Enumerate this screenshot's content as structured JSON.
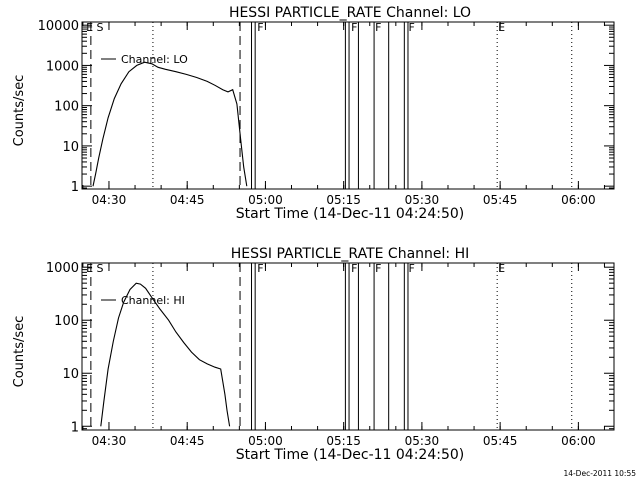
{
  "chart_data": [
    {
      "type": "line",
      "title": "HESSI PARTICLE_RATE Channel: LO",
      "xlabel": "Start Time (14-Dec-11 04:24:50)",
      "ylabel": "Counts/sec",
      "y_scale": "log",
      "xlim_minutes_after_start": [
        0,
        102
      ],
      "ylim": [
        0.85,
        12000
      ],
      "x_ticks": [
        {
          "label": "04:30",
          "value": 5.17
        },
        {
          "label": "04:45",
          "value": 20.17
        },
        {
          "label": "05:00",
          "value": 35.17
        },
        {
          "label": "05:15",
          "value": 50.17
        },
        {
          "label": "05:30",
          "value": 65.17
        },
        {
          "label": "05:45",
          "value": 80.17
        },
        {
          "label": "06:00",
          "value": 95.17
        }
      ],
      "y_ticks": [
        {
          "label": "1",
          "value": 1
        },
        {
          "label": "10",
          "value": 10
        },
        {
          "label": "100",
          "value": 100
        },
        {
          "label": "1000",
          "value": 1000
        },
        {
          "label": "10000",
          "value": 10000
        }
      ],
      "legend": {
        "label": "Channel: LO",
        "position": "top-left"
      },
      "series": [
        {
          "name": "Channel: LO",
          "x": [
            2.1,
            2.6,
            3.2,
            4.0,
            5.0,
            6.2,
            7.5,
            9.0,
            10.5,
            12.0,
            13.4,
            14.6,
            16.0,
            18.0,
            20.0,
            22.0,
            24.0,
            25.5,
            27.0,
            28.0,
            28.9,
            29.7,
            30.4,
            31.0,
            31.6
          ],
          "y": [
            1,
            2,
            5,
            15,
            50,
            150,
            350,
            700,
            1000,
            1200,
            1100,
            900,
            800,
            700,
            600,
            500,
            400,
            320,
            250,
            220,
            250,
            110,
            15,
            3,
            1
          ]
        }
      ],
      "annotations": {
        "dashed_lines": [
          1.7,
          30.3
        ],
        "solid_lines": [
          32.5,
          33.2,
          50.5,
          51.2,
          53.0,
          56.0,
          58.8,
          61.8,
          62.5
        ],
        "dotted_lines": [
          13.6,
          79.6,
          93.9
        ],
        "flags": [
          {
            "label": "E",
            "at": 0.6
          },
          {
            "label": "S",
            "at": 2.6
          },
          {
            "label": "F",
            "at": 33.4
          },
          {
            "label": "F",
            "at": 51.4
          },
          {
            "label": "F",
            "at": 56.0
          },
          {
            "label": "F",
            "at": 62.4
          },
          {
            "label": "E",
            "at": 79.6
          }
        ]
      }
    },
    {
      "type": "line",
      "title": "HESSI PARTICLE_RATE Channel: HI",
      "xlabel": "Start Time (14-Dec-11 04:24:50)",
      "ylabel": "Counts/sec",
      "y_scale": "log",
      "xlim_minutes_after_start": [
        0,
        102
      ],
      "ylim": [
        0.85,
        1200
      ],
      "x_ticks": [
        {
          "label": "04:30",
          "value": 5.17
        },
        {
          "label": "04:45",
          "value": 20.17
        },
        {
          "label": "05:00",
          "value": 35.17
        },
        {
          "label": "05:15",
          "value": 50.17
        },
        {
          "label": "05:30",
          "value": 65.17
        },
        {
          "label": "05:45",
          "value": 80.17
        },
        {
          "label": "06:00",
          "value": 95.17
        }
      ],
      "y_ticks": [
        {
          "label": "1",
          "value": 1
        },
        {
          "label": "10",
          "value": 10
        },
        {
          "label": "100",
          "value": 100
        },
        {
          "label": "1000",
          "value": 1000
        }
      ],
      "legend": {
        "label": "Channel: HI",
        "position": "top-left"
      },
      "series": [
        {
          "name": "Channel: HI",
          "x": [
            3.6,
            4.2,
            5.0,
            6.0,
            7.0,
            8.0,
            9.2,
            10.4,
            11.2,
            12.2,
            13.6,
            15.0,
            16.6,
            18.0,
            19.5,
            21.0,
            22.5,
            24.0,
            25.5,
            26.6,
            27.4,
            27.8,
            28.3
          ],
          "y": [
            1,
            3,
            12,
            40,
            110,
            220,
            380,
            500,
            480,
            400,
            250,
            160,
            100,
            60,
            38,
            25,
            18,
            15,
            13,
            12,
            4,
            2,
            1
          ]
        }
      ],
      "annotations": {
        "dashed_lines": [
          1.7,
          30.3
        ],
        "solid_lines": [
          32.5,
          33.2,
          50.5,
          51.2,
          53.0,
          56.0,
          58.8,
          61.8,
          62.5
        ],
        "dotted_lines": [
          13.6,
          79.6,
          93.9
        ],
        "flags": [
          {
            "label": "E",
            "at": 0.6
          },
          {
            "label": "S",
            "at": 2.6
          },
          {
            "label": "F",
            "at": 33.4
          },
          {
            "label": "F",
            "at": 51.4
          },
          {
            "label": "F",
            "at": 56.0
          },
          {
            "label": "F",
            "at": 62.4
          },
          {
            "label": "E",
            "at": 79.6
          }
        ]
      }
    }
  ],
  "footer": {
    "timestamp": "14-Dec-2011 10:55"
  },
  "colors": {
    "background": "#ffffff",
    "foreground": "#000000"
  }
}
